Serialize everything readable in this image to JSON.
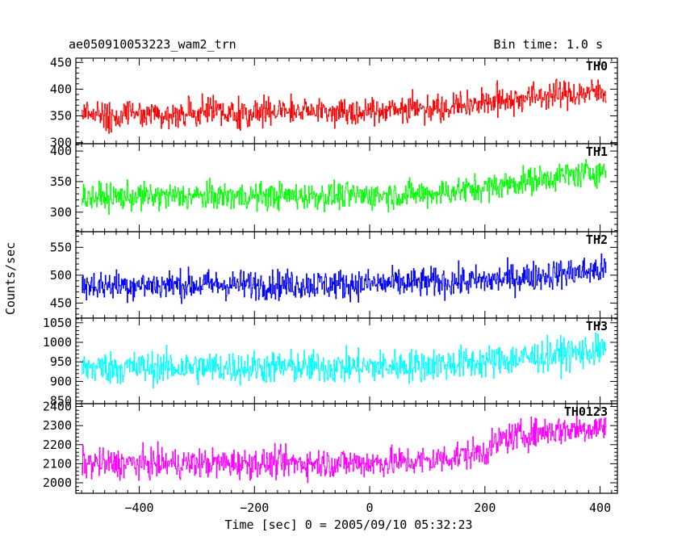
{
  "header": {
    "left": "ae050910053223_wam2_trn",
    "right": "Bin time: 1.0 s"
  },
  "chart_data": {
    "type": "line",
    "xlabel": "Time [sec] 0 = 2005/09/10 05:32:23",
    "ylabel": "Counts/sec",
    "xlim": [
      -510,
      430
    ],
    "xticks": [
      -400,
      -200,
      0,
      200,
      400
    ],
    "xtick_labels": [
      "−400",
      "−200",
      "0",
      "200",
      "400"
    ],
    "bin_time_s": 1.0,
    "grid": false,
    "legend": "none",
    "series": [
      {
        "name": "TH0",
        "color": "#ff0000",
        "ylim": [
          298,
          458
        ],
        "yticks": [
          300,
          350,
          400,
          450
        ],
        "trend": {
          "x": [
            -500,
            0,
            100,
            200,
            300,
            410
          ],
          "y": [
            352,
            360,
            365,
            375,
            388,
            395
          ]
        },
        "noise_amplitude": 24
      },
      {
        "name": "TH1",
        "color": "#00ff00",
        "ylim": [
          268,
          412
        ],
        "yticks": [
          300,
          350,
          400
        ],
        "trend": {
          "x": [
            -500,
            0,
            100,
            200,
            300,
            410
          ],
          "y": [
            325,
            327,
            330,
            340,
            355,
            368
          ]
        },
        "noise_amplitude": 20
      },
      {
        "name": "TH2",
        "color": "#0000ff",
        "ylim": [
          423,
          578
        ],
        "yticks": [
          450,
          500,
          550
        ],
        "trend": {
          "x": [
            -500,
            0,
            100,
            200,
            300,
            410
          ],
          "y": [
            482,
            484,
            487,
            490,
            500,
            510
          ]
        },
        "noise_amplitude": 24
      },
      {
        "name": "TH3",
        "color": "#00ffff",
        "ylim": [
          843,
          1062
        ],
        "yticks": [
          850,
          900,
          950,
          1000,
          1050
        ],
        "trend": {
          "x": [
            -500,
            0,
            100,
            200,
            300,
            410
          ],
          "y": [
            935,
            937,
            942,
            950,
            965,
            980
          ]
        },
        "noise_amplitude": 38
      },
      {
        "name": "TH0123",
        "color": "#ff00ff",
        "ylim": [
          1945,
          2415
        ],
        "yticks": [
          2000,
          2100,
          2200,
          2300,
          2400
        ],
        "trend": {
          "x": [
            -500,
            0,
            100,
            150,
            200,
            230,
            300,
            410
          ],
          "y": [
            2100,
            2105,
            2115,
            2140,
            2165,
            2230,
            2270,
            2295
          ]
        },
        "noise_amplitude": 70
      }
    ]
  }
}
